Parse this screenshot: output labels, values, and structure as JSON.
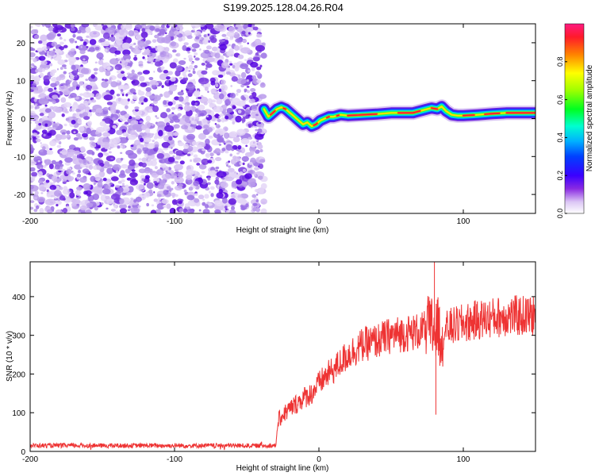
{
  "figure": {
    "title": "S199.2025.128.04.26.R04"
  },
  "chart_data": [
    {
      "type": "heatmap",
      "name": "spectrogram",
      "xlabel": "Height of straight line (km)",
      "ylabel": "Frequency (Hz)",
      "xlim": [
        -200,
        150
      ],
      "ylim": [
        -25,
        25
      ],
      "xticks": [
        -200,
        -100,
        0,
        100
      ],
      "yticks": [
        -20,
        -10,
        0,
        10,
        20
      ],
      "noise_region": {
        "x_from": -200,
        "x_to": -38,
        "description_value": "broadband noise"
      },
      "signal_track": {
        "x": [
          -38,
          -35,
          -32,
          -29,
          -26,
          -23,
          -20,
          -17,
          -14,
          -11,
          -8,
          -5,
          -2,
          1,
          4,
          7,
          10,
          15,
          20,
          30,
          40,
          50,
          60,
          65,
          70,
          75,
          78,
          82,
          85,
          88,
          92,
          96,
          100,
          110,
          120,
          130,
          140,
          150
        ],
        "y": [
          2.5,
          0.5,
          1.5,
          2.5,
          3.0,
          2.5,
          1.5,
          0.5,
          -0.5,
          -1.5,
          -1.0,
          -2.0,
          -1.5,
          -0.5,
          0.0,
          0.5,
          0.5,
          1.0,
          0.8,
          1.0,
          1.2,
          1.5,
          1.5,
          1.5,
          2.0,
          2.5,
          2.8,
          2.5,
          3.2,
          2.0,
          1.0,
          0.8,
          0.8,
          1.0,
          1.3,
          1.5,
          1.5,
          1.5
        ]
      },
      "colorbar": {
        "label": "Normalized spectral amplitude",
        "range": [
          0,
          1
        ],
        "ticks": [
          0.0,
          0.2,
          0.4,
          0.6,
          0.8
        ],
        "tick_labels": [
          "0.0",
          "0.2",
          "0.4",
          "0.6",
          "0.8"
        ]
      }
    },
    {
      "type": "line",
      "name": "snr",
      "xlabel": "Height of straight line (km)",
      "ylabel": "SNR (10 * v/v)",
      "xlim": [
        -200,
        150
      ],
      "ylim": [
        0,
        490
      ],
      "xticks": [
        -200,
        -100,
        0,
        100
      ],
      "yticks": [
        0,
        100,
        200,
        300,
        400
      ],
      "color": "#ee3333",
      "series": [
        {
          "name": "SNR",
          "x": [
            -200,
            -150,
            -100,
            -50,
            -30,
            -28,
            -25,
            -20,
            -15,
            -10,
            -5,
            0,
            5,
            10,
            20,
            30,
            40,
            50,
            60,
            70,
            75,
            80,
            85,
            90,
            100,
            110,
            120,
            130,
            140,
            150
          ],
          "y": [
            15,
            15,
            15,
            15,
            15,
            80,
            95,
            110,
            125,
            140,
            150,
            175,
            195,
            210,
            250,
            275,
            285,
            300,
            305,
            310,
            315,
            320,
            300,
            320,
            330,
            340,
            345,
            350,
            350,
            350
          ]
        }
      ],
      "annotations": [
        {
          "x": 80,
          "y": 490,
          "label": "spike"
        },
        {
          "x": 81,
          "y": 95,
          "label": "dip"
        }
      ]
    }
  ]
}
